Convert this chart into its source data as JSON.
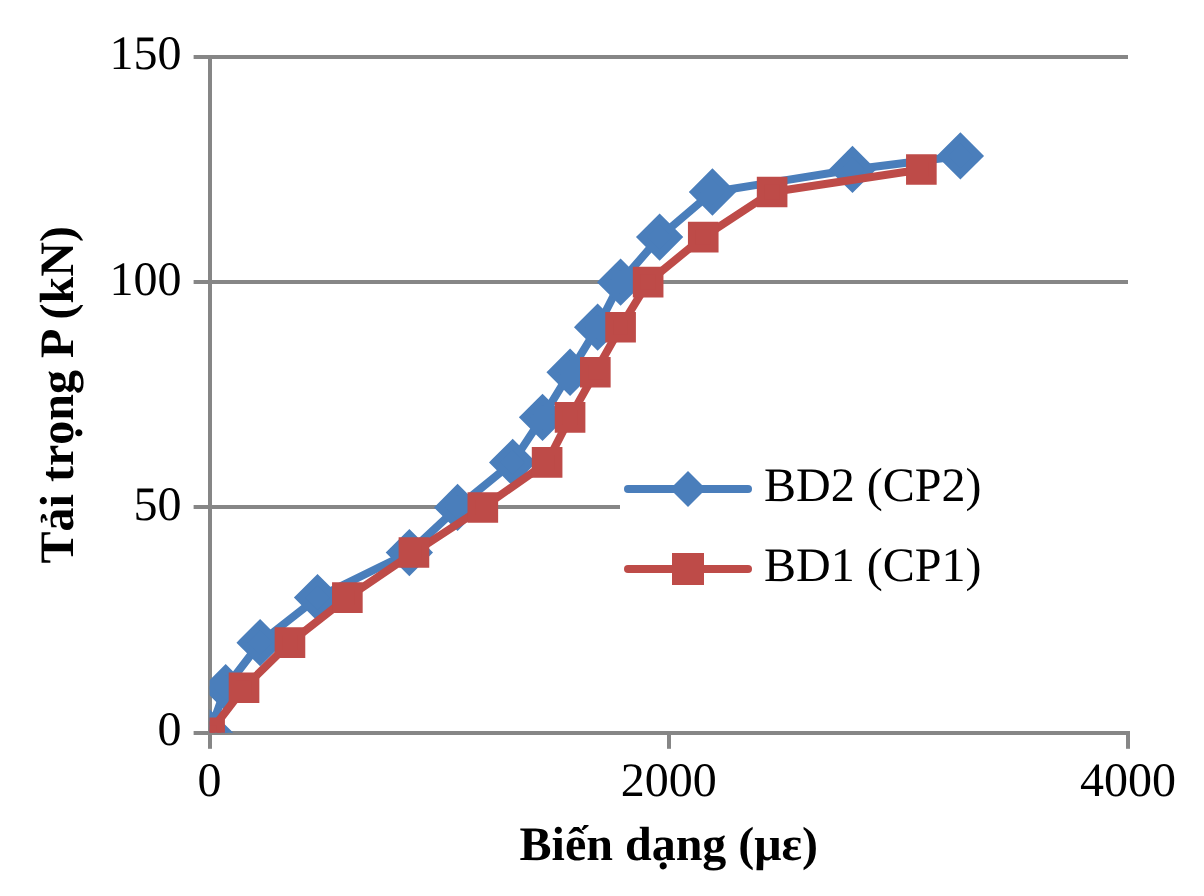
{
  "chart_data": {
    "type": "line",
    "xlabel": "Biến dạng (με)",
    "ylabel": "Tải trọng P (kN)",
    "xlim": [
      0,
      4000
    ],
    "xticks": [
      0,
      2000,
      4000
    ],
    "ylim": [
      0,
      150
    ],
    "yticks": [
      0,
      50,
      100,
      150
    ],
    "grid": "y",
    "legend": "right",
    "series": [
      {
        "name": "BD2 (CP2)",
        "color": "#4a7ebb",
        "marker": "diamond",
        "x": [
          0,
          70,
          220,
          470,
          870,
          1080,
          1320,
          1450,
          1570,
          1690,
          1790,
          1960,
          2190,
          2800,
          3270
        ],
        "values": [
          0,
          10,
          20,
          30,
          40,
          50,
          60,
          70,
          80,
          90,
          100,
          110,
          120,
          125,
          128
        ]
      },
      {
        "name": "BD1 (CP1)",
        "color": "#be4b48",
        "marker": "square",
        "x": [
          0,
          150,
          350,
          600,
          890,
          1190,
          1470,
          1570,
          1680,
          1790,
          1910,
          2150,
          2450,
          3100
        ],
        "values": [
          0,
          10,
          20,
          30,
          40,
          50,
          60,
          70,
          80,
          90,
          100,
          110,
          120,
          125
        ]
      }
    ]
  }
}
